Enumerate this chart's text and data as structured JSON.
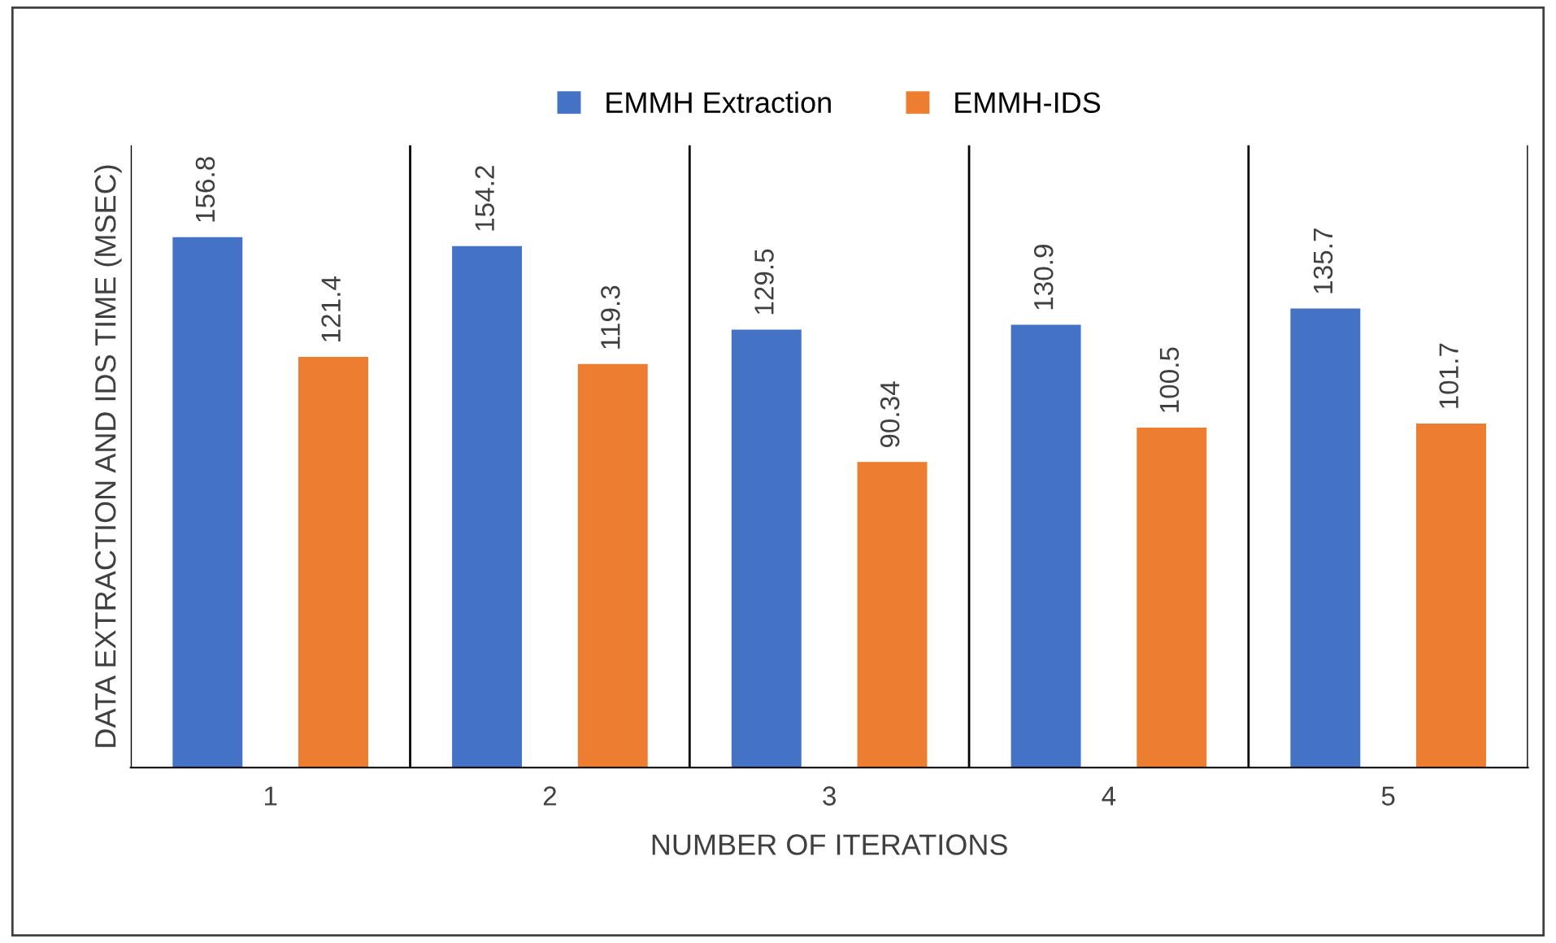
{
  "chart_data": {
    "type": "bar",
    "xlabel": "NUMBER OF ITERATIONS",
    "ylabel": "DATA EXTRACTION AND IDS TIME (MSEC)",
    "categories": [
      "1",
      "2",
      "3",
      "4",
      "5"
    ],
    "series": [
      {
        "name": "EMMH Extraction",
        "color": "#4472c4",
        "values": [
          156.8,
          154.2,
          129.5,
          130.9,
          135.7
        ]
      },
      {
        "name": "EMMH-IDS",
        "color": "#ed7d31",
        "values": [
          121.4,
          119.3,
          90.34,
          100.5,
          101.7
        ]
      }
    ],
    "ylim": [
      0,
      184
    ],
    "tick_labels": "x",
    "grid": "x",
    "legend": "top",
    "data_labels": true
  }
}
